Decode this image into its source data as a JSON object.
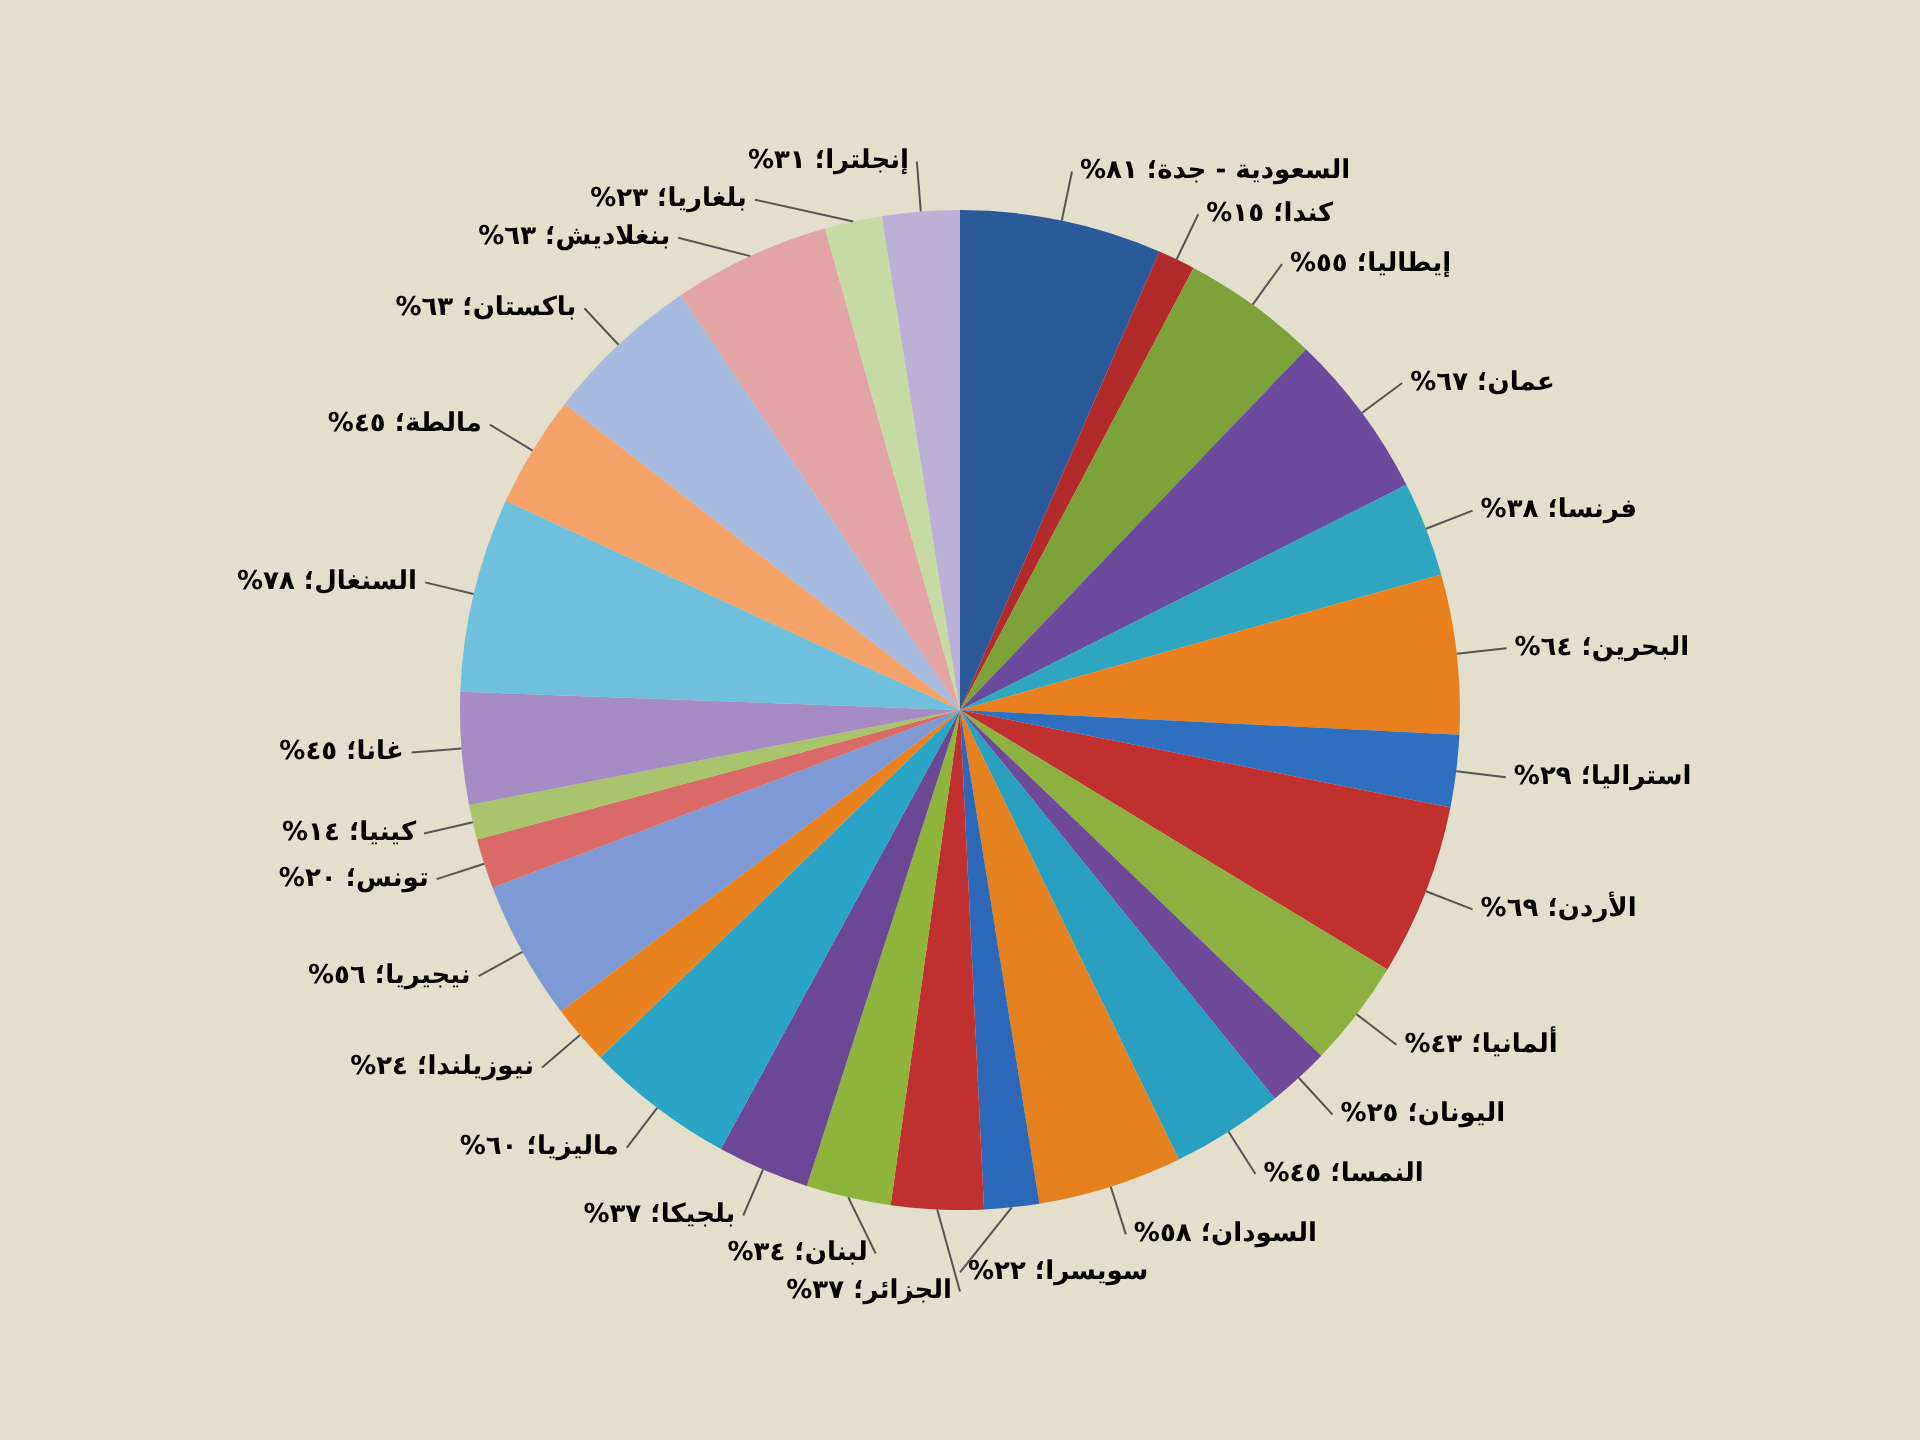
{
  "chart_data": {
    "type": "pie",
    "categories": [
      "السعودية - جدة؛",
      "كندا؛",
      "إيطاليا؛",
      "عمان؛",
      "فرنسا؛",
      "البحرين؛",
      "استراليا؛",
      "الأردن؛",
      "ألمانيا؛",
      "اليونان؛",
      "النمسا؛",
      "السودان؛",
      "سويسرا؛",
      "الجزائر؛",
      "لبنان؛",
      "بلجيكا؛",
      "ماليزيا؛",
      "نيوزيلندا؛",
      "نيجيريا؛",
      "تونس؛",
      "كينيا؛",
      "غانا؛",
      "السنغال؛",
      "مالطة؛",
      "باكستان؛",
      "بنغلاديش؛",
      "بلغاريا؛",
      "إنجلترا؛"
    ],
    "values": [
      81,
      15,
      55,
      67,
      38,
      64,
      29,
      69,
      43,
      25,
      45,
      58,
      22,
      37,
      34,
      37,
      60,
      24,
      56,
      20,
      14,
      45,
      78,
      45,
      63,
      63,
      23,
      31
    ],
    "value_labels": [
      "٨١%",
      "١٥%",
      "٥٥%",
      "٦٧%",
      "٣٨%",
      "٦٤%",
      "٢٩%",
      "٦٩%",
      "٤٣%",
      "٢٥%",
      "٤٥%",
      "٥٨%",
      "٢٢%",
      "٣٧%",
      "٣٤%",
      "٣٧%",
      "٦٠%",
      "٢٤%",
      "٥٦%",
      "٢٠%",
      "١٤%",
      "٤٥%",
      "٧٨%",
      "٤٥%",
      "٦٣%",
      "٦٣%",
      "٢٣%",
      "٣١%"
    ],
    "colors": [
      "#2a5a9a",
      "#b22a2a",
      "#7da23a",
      "#6a4a9a",
      "#2ea6bf",
      "#e8801e",
      "#2f6fc0",
      "#c0302e",
      "#8db040",
      "#6c4a98",
      "#2aa0c0",
      "#e5801f",
      "#2d68b8",
      "#c03030",
      "#8fb43c",
      "#6a4896",
      "#2aa5c6",
      "#e8821e",
      "#7e9ad4",
      "#d96a68",
      "#a9c46c",
      "#a58cc4",
      "#6ec0dc",
      "#f4a267",
      "#a6badf",
      "#e2a4a4",
      "#c6dba3",
      "#bcb0d6"
    ]
  }
}
